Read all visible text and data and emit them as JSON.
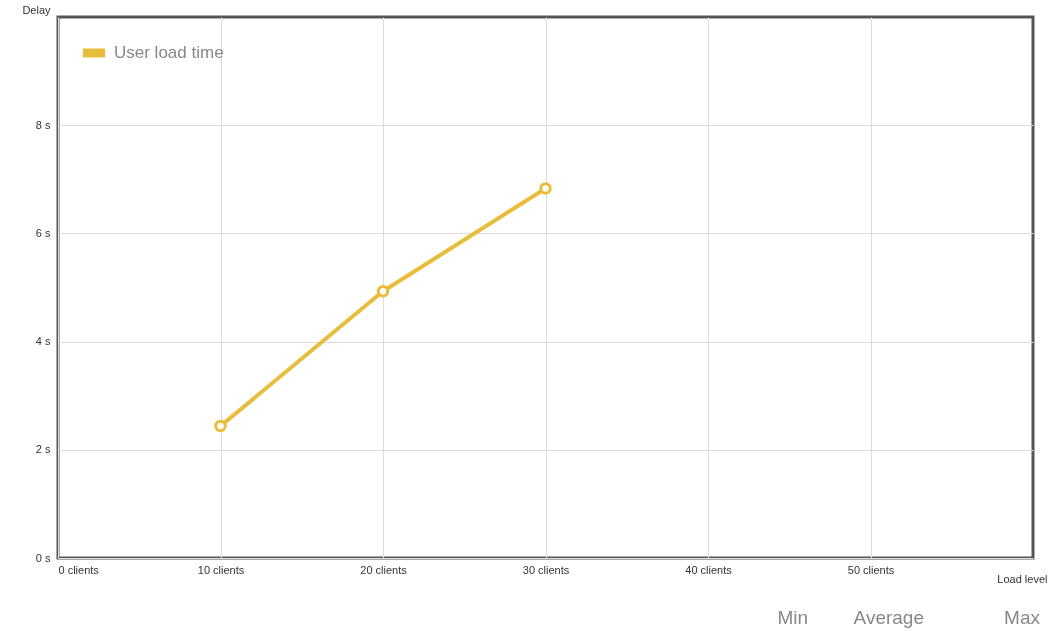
{
  "chart_data": {
    "type": "line",
    "xlabel": "Load level",
    "ylabel": "Delay",
    "x": [
      10,
      20,
      30
    ],
    "series": [
      {
        "name": "User load time",
        "color": "#e8bd3c",
        "values": [
          2.44,
          4.93,
          6.83
        ]
      }
    ],
    "xlim": [
      0,
      60
    ],
    "xticks": [
      {
        "value": 0,
        "label": "0 clients"
      },
      {
        "value": 10,
        "label": "10 clients"
      },
      {
        "value": 20,
        "label": "20 clients"
      },
      {
        "value": 30,
        "label": "30 clients"
      },
      {
        "value": 40,
        "label": "40 clients"
      },
      {
        "value": 50,
        "label": "50 clients"
      }
    ],
    "ylim": [
      0,
      10
    ],
    "yticks": [
      {
        "value": 0,
        "label": "0 s"
      },
      {
        "value": 2,
        "label": "2 s"
      },
      {
        "value": 4,
        "label": "4 s"
      },
      {
        "value": 6,
        "label": "6 s"
      },
      {
        "value": 8,
        "label": "8 s"
      }
    ],
    "grid": true,
    "legend": "top left",
    "marker": "circle",
    "line_style": "solid",
    "annotations": [
      "Min",
      "Average",
      "Max"
    ]
  }
}
